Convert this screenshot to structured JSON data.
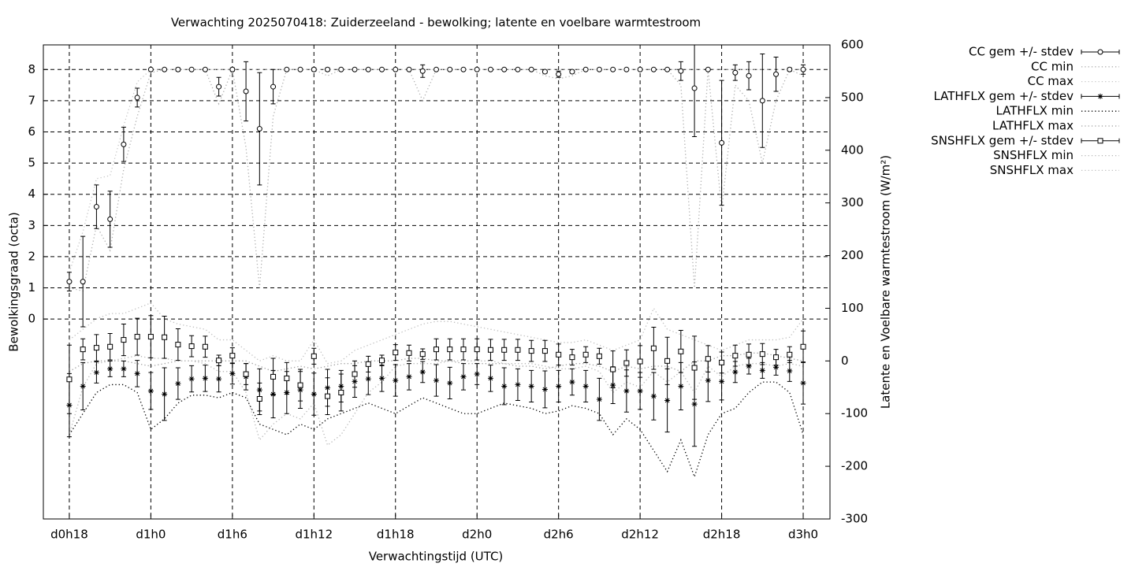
{
  "chart_data": {
    "type": "errorbar",
    "title": "Verwachting 2025070418: Zuiderzeeland - bewolking; latente en voelbare warmtestroom",
    "x_label": "Verwachtingstijd (UTC)",
    "y_label": "Bewolkingsgraad (octa)",
    "y2_label": "Latente en Voelbare warmtestroom (W/m²)",
    "x": [
      18,
      19,
      20,
      21,
      22,
      23,
      24,
      25,
      26,
      27,
      28,
      29,
      30,
      31,
      32,
      33,
      34,
      35,
      36,
      37,
      38,
      39,
      40,
      41,
      42,
      43,
      44,
      45,
      46,
      47,
      48,
      49,
      50,
      51,
      52,
      53,
      54,
      55,
      56,
      57,
      58,
      59,
      60,
      61,
      62,
      63,
      64,
      65,
      66,
      67,
      68,
      69,
      70,
      71,
      72
    ],
    "xlim": [
      16.09,
      73.97
    ],
    "xticks": [
      {
        "value": 18,
        "label": "d0h18"
      },
      {
        "value": 24,
        "label": "d1h0"
      },
      {
        "value": 30,
        "label": "d1h6"
      },
      {
        "value": 36,
        "label": "d1h12"
      },
      {
        "value": 42,
        "label": "d1h18"
      },
      {
        "value": 48,
        "label": "d2h0"
      },
      {
        "value": 54,
        "label": "d2h6"
      },
      {
        "value": 60,
        "label": "d2h12"
      },
      {
        "value": 66,
        "label": "d2h18"
      },
      {
        "value": 72,
        "label": "d3h0"
      }
    ],
    "ylim": [
      -6.41,
      8.79
    ],
    "yticks": [
      0,
      1,
      2,
      3,
      4,
      5,
      6,
      7,
      8
    ],
    "y2lim": [
      -300,
      600
    ],
    "y2ticks": [
      -300,
      -200,
      -100,
      0,
      100,
      200,
      300,
      400,
      500,
      600
    ],
    "grid": true,
    "legend": "right",
    "series": [
      {
        "name": "CC gem +/- stdev",
        "style": "errorbar",
        "marker": "circle",
        "color": "#000000",
        "axis": "y",
        "values": [
          1.2,
          1.2,
          3.6,
          3.2,
          5.6,
          7.1,
          8,
          8,
          8,
          8,
          8,
          7.45,
          8,
          7.3,
          6.1,
          7.45,
          8,
          8,
          8,
          8,
          8,
          8,
          8,
          8,
          8,
          8,
          7.95,
          8,
          8,
          8,
          8,
          8,
          8,
          8,
          8,
          7.93,
          7.85,
          7.93,
          8,
          8,
          8,
          8,
          8,
          8,
          8,
          7.95,
          7.4,
          8,
          5.65,
          7.9,
          7.8,
          7.0,
          7.85,
          8,
          8
        ],
        "errors": [
          0.3,
          1.45,
          0.7,
          0.9,
          0.55,
          0.3,
          0,
          0,
          0.05,
          0,
          0,
          0.3,
          0.05,
          0.95,
          1.8,
          0.55,
          0,
          0,
          0.05,
          0.05,
          0,
          0,
          0,
          0,
          0,
          0,
          0.2,
          0,
          0,
          0,
          0,
          0,
          0,
          0,
          0,
          0.05,
          0.1,
          0.05,
          0,
          0,
          0,
          0,
          0,
          0,
          0,
          0.3,
          1.55,
          0,
          2.0,
          0.25,
          0.45,
          1.5,
          0.55,
          0.05,
          0.15
        ]
      },
      {
        "name": "CC min",
        "style": "dotted",
        "color": "#b0b0b0",
        "axis": "y",
        "values": [
          1.0,
          0.9,
          3.0,
          2.2,
          4.8,
          6.5,
          7.9,
          8,
          8,
          8,
          8,
          6.9,
          8,
          5.5,
          1.0,
          6.5,
          8,
          8,
          8,
          7.8,
          8,
          8,
          8,
          8,
          8,
          8,
          7.0,
          8,
          8,
          8,
          8,
          8,
          8,
          8,
          8,
          7.8,
          7.7,
          7.8,
          8,
          8,
          8,
          8,
          8,
          8,
          8,
          7.5,
          1.0,
          8,
          3.5,
          7.5,
          7.0,
          5.0,
          7.0,
          8,
          7.8
        ]
      },
      {
        "name": "CC max",
        "style": "dotted",
        "color": "#c8c8c8",
        "axis": "y",
        "values": [
          1.5,
          2.8,
          4.5,
          4.6,
          6.2,
          7.6,
          8,
          8,
          8,
          8,
          8,
          8,
          8,
          8,
          8,
          8,
          8,
          8,
          8,
          8,
          8,
          8,
          8,
          8,
          8,
          8,
          8,
          8,
          8,
          8,
          8,
          8,
          8,
          8,
          8,
          8,
          8,
          8,
          8,
          8,
          8,
          8,
          8,
          8,
          8,
          8,
          8,
          8,
          8,
          8,
          8,
          8,
          8,
          8,
          8
        ]
      },
      {
        "name": "LATHFLX gem +/- stdev",
        "style": "errorbar",
        "marker": "star",
        "color": "#000000",
        "axis": "y2",
        "values": [
          -84,
          -48,
          -22,
          -15,
          -15,
          -24,
          -57,
          -63,
          -43,
          -34,
          -33,
          -34,
          -24,
          -30,
          -55,
          -63,
          -60,
          -55,
          -63,
          -51,
          -48,
          -39,
          -34,
          -33,
          -37,
          -30,
          -21,
          -37,
          -42,
          -30,
          -25,
          -33,
          -48,
          -45,
          -48,
          -54,
          -48,
          -40,
          -48,
          -73,
          -46,
          -57,
          -57,
          -67,
          -75,
          -48,
          -82,
          -37,
          -39,
          -21,
          -10,
          -18,
          -12,
          -19,
          -42
        ],
        "errors": [
          60,
          45,
          20,
          15,
          15,
          25,
          35,
          50,
          30,
          25,
          25,
          25,
          20,
          25,
          40,
          45,
          40,
          35,
          40,
          35,
          30,
          30,
          30,
          25,
          30,
          25,
          20,
          30,
          30,
          25,
          20,
          25,
          35,
          30,
          30,
          35,
          30,
          25,
          30,
          40,
          35,
          40,
          35,
          45,
          60,
          45,
          80,
          40,
          35,
          20,
          15,
          15,
          15,
          20,
          40
        ]
      },
      {
        "name": "LATHFLX min",
        "style": "dotted",
        "color": "#000000",
        "axis": "y2",
        "values": [
          -140,
          -100,
          -60,
          -45,
          -45,
          -60,
          -130,
          -110,
          -80,
          -65,
          -65,
          -70,
          -60,
          -70,
          -120,
          -130,
          -140,
          -120,
          -130,
          -110,
          -100,
          -90,
          -80,
          -90,
          -100,
          -85,
          -70,
          -80,
          -90,
          -100,
          -100,
          -90,
          -80,
          -85,
          -90,
          -100,
          -95,
          -85,
          -90,
          -100,
          -140,
          -110,
          -130,
          -170,
          -210,
          -150,
          -220,
          -140,
          -100,
          -90,
          -60,
          -40,
          -40,
          -60,
          -140
        ]
      },
      {
        "name": "LATHFLX max",
        "style": "dotted",
        "color": "#a0a0a0",
        "axis": "y2",
        "values": [
          -20,
          -5,
          0,
          0,
          0,
          -5,
          -10,
          -5,
          0,
          0,
          0,
          0,
          0,
          0,
          -10,
          -20,
          -15,
          -10,
          -15,
          -10,
          -5,
          -5,
          0,
          0,
          0,
          5,
          5,
          0,
          0,
          -5,
          -5,
          -5,
          -5,
          -10,
          -10,
          -15,
          -10,
          -5,
          -5,
          -10,
          -20,
          -10,
          -15,
          -10,
          -10,
          -20,
          0,
          0,
          10,
          10,
          15,
          15,
          10,
          5,
          0
        ]
      },
      {
        "name": "SNSHFLX gem +/- stdev",
        "style": "errorbar",
        "marker": "square",
        "color": "#000000",
        "axis": "y2",
        "values": [
          -35,
          22,
          25,
          27,
          40,
          46,
          46,
          45,
          31,
          28,
          27,
          1,
          10,
          -25,
          -72,
          -30,
          -33,
          -46,
          9,
          -67,
          -60,
          -25,
          -6,
          1,
          16,
          15,
          13,
          22,
          22,
          22,
          22,
          21,
          21,
          21,
          19,
          19,
          12,
          7,
          12,
          9,
          -16,
          -4,
          -1,
          24,
          0,
          18,
          -13,
          4,
          -3,
          10,
          12,
          13,
          7,
          12,
          27
        ],
        "errors": [
          65,
          20,
          25,
          25,
          30,
          35,
          40,
          40,
          30,
          20,
          20,
          10,
          15,
          20,
          30,
          35,
          30,
          30,
          15,
          35,
          35,
          25,
          15,
          10,
          15,
          15,
          10,
          20,
          20,
          20,
          20,
          20,
          20,
          20,
          20,
          20,
          20,
          15,
          15,
          15,
          35,
          25,
          30,
          40,
          45,
          40,
          60,
          25,
          20,
          20,
          20,
          20,
          15,
          15,
          30
        ]
      },
      {
        "name": "SNSHFLX min",
        "style": "dotted",
        "color": "#b8b8b8",
        "axis": "y2",
        "values": [
          -140,
          -50,
          -5,
          0,
          5,
          10,
          5,
          5,
          0,
          0,
          -5,
          -20,
          -20,
          -60,
          -150,
          -120,
          -100,
          -110,
          -80,
          -160,
          -140,
          -100,
          -60,
          -40,
          -10,
          -5,
          -5,
          -5,
          0,
          0,
          0,
          0,
          -5,
          -5,
          -5,
          -10,
          -15,
          -15,
          -10,
          -20,
          -60,
          -40,
          -50,
          -20,
          -40,
          -20,
          -60,
          -10,
          -30,
          -10,
          -5,
          -5,
          -10,
          -5,
          -10
        ]
      },
      {
        "name": "SNSHFLX max",
        "style": "dotted",
        "color": "#c0c0c0",
        "axis": "y2",
        "values": [
          40,
          60,
          80,
          90,
          90,
          100,
          110,
          80,
          70,
          65,
          60,
          40,
          40,
          20,
          0,
          10,
          0,
          0,
          40,
          -5,
          0,
          20,
          30,
          40,
          50,
          60,
          70,
          75,
          75,
          70,
          65,
          60,
          55,
          50,
          45,
          40,
          35,
          35,
          40,
          30,
          20,
          30,
          40,
          100,
          60,
          50,
          40,
          30,
          20,
          30,
          40,
          40,
          40,
          45,
          80
        ]
      }
    ]
  }
}
